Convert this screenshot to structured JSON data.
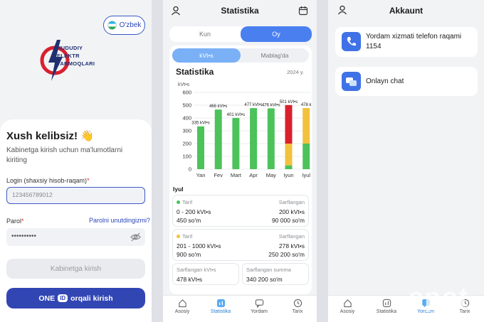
{
  "login": {
    "lang": "O'zbek",
    "logo_lines": [
      "HUDUDIY",
      "ELEKTR",
      "TARMOQLARI"
    ],
    "welcome": "Xush kelibsiz! 👋",
    "subtitle": "Kabinetga kirish uchun ma'lumotlarni kiriting",
    "login_label": "Login (shaxsiy hisob-raqam)",
    "required_mark": "*",
    "login_placeholder": "123456789012",
    "password_label": "Parol",
    "forgot": "Parolni unutdingizmi?",
    "password_value": "••••••••••",
    "btn_login": "Kabinetga kirish",
    "oneid_one": "ONE",
    "oneid_id": "ID",
    "oneid_rest": "orqali kirish"
  },
  "stats": {
    "title": "Statistika",
    "period_tabs": [
      "Kun",
      "Oy"
    ],
    "type_tabs": [
      "kVt•s",
      "Mablag'da"
    ],
    "section_title": "Statistika",
    "year": "2024 y.",
    "month": "Iyul",
    "tariff_label": "Tarif",
    "used_label": "Sarflangan",
    "tariffs": [
      {
        "range": "0 - 200 kVt•s",
        "price": "450 so'm",
        "used": "200 kVt•s",
        "sum": "90 000 so'm",
        "color": "#4cc25a"
      },
      {
        "range": "201 - 1000 kVt•s",
        "price": "900 so'm",
        "used": "278 kVt•s",
        "sum": "250 200 so'm",
        "color": "#f2c13d"
      }
    ],
    "total_kwh_label": "Sarflangan kVt•s",
    "total_kwh": "478 kVt•s",
    "total_sum_label": "Sarflangan summa",
    "total_sum": "340 200 so'm"
  },
  "tabs": [
    "Asosiy",
    "Statistika",
    "Yordam",
    "Tarix"
  ],
  "account": {
    "title": "Akkaunt",
    "help_phone": "Yordam xizmati telefon raqami 1154",
    "online_chat": "Onlayn chat"
  },
  "watermark": "spot",
  "chart_data": {
    "type": "bar",
    "ylabel": "kVt•s",
    "ylim": [
      0,
      600
    ],
    "yticks": [
      0,
      100,
      200,
      300,
      400,
      500,
      600
    ],
    "categories": [
      "Yan",
      "Fev",
      "Mart",
      "Apr",
      "May",
      "Iyun",
      "Iyul"
    ],
    "values": [
      335,
      466,
      401,
      477,
      476,
      501,
      478
    ],
    "labels": [
      "335 kVt•s",
      "466 kVt•s",
      "401 kVt•s",
      "477 kVt•s",
      "476 kVt•s",
      "501 kVt•s",
      "478 k"
    ],
    "stacked_segments": {
      "Iyun": [
        {
          "value": 30,
          "color": "#4cc25a"
        },
        {
          "value": 170,
          "color": "#f2c13d"
        },
        {
          "value": 301,
          "color": "#d8202e"
        }
      ],
      "Iyul": [
        {
          "value": 200,
          "color": "#4cc25a"
        },
        {
          "value": 278,
          "color": "#f2c13d"
        }
      ]
    },
    "bar_color": "#4cc25a",
    "grid": true
  }
}
